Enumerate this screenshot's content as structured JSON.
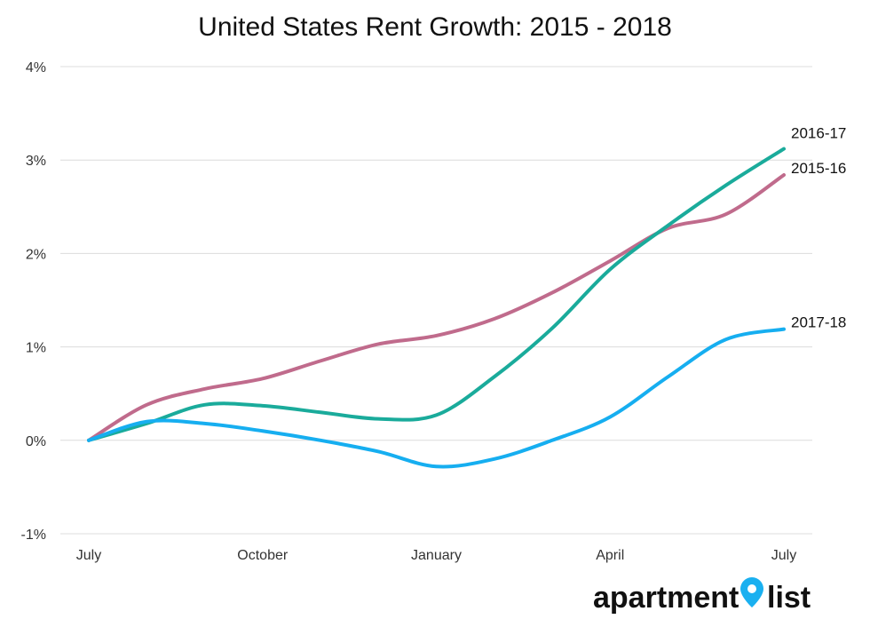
{
  "chart_data": {
    "type": "line",
    "title": "United States Rent Growth: 2015 - 2018",
    "xlabel": "",
    "ylabel": "",
    "x_tick_labels": [
      "July",
      "October",
      "January",
      "April",
      "July"
    ],
    "x_tick_positions": [
      0,
      3,
      6,
      9,
      12
    ],
    "y_tick_labels": [
      "-1%",
      "0%",
      "1%",
      "2%",
      "3%",
      "4%"
    ],
    "y_ticks": [
      -1,
      0,
      1,
      2,
      3,
      4
    ],
    "ylim": [
      -1,
      4
    ],
    "x_months": [
      0,
      1,
      2,
      3,
      4,
      5,
      6,
      7,
      8,
      9,
      10,
      11,
      12
    ],
    "grid": true,
    "legend": "inline labels at line ends",
    "series": [
      {
        "name": "2015-16",
        "color": "#c06b8c",
        "values": [
          0,
          0.38,
          0.55,
          0.66,
          0.85,
          1.03,
          1.12,
          1.3,
          1.58,
          1.92,
          2.27,
          2.42,
          2.84
        ]
      },
      {
        "name": "2016-17",
        "color": "#1aab9b",
        "values": [
          0,
          0.18,
          0.38,
          0.37,
          0.3,
          0.23,
          0.27,
          0.68,
          1.2,
          1.83,
          2.3,
          2.73,
          3.12
        ]
      },
      {
        "name": "2017-18",
        "color": "#16aef0",
        "values": [
          0,
          0.2,
          0.18,
          0.1,
          0.0,
          -0.12,
          -0.28,
          -0.2,
          0.0,
          0.25,
          0.68,
          1.08,
          1.19
        ]
      }
    ]
  },
  "brand": {
    "name_part_1": "apartment",
    "name_part_2": "list",
    "marker_color": "#1ab0f0"
  }
}
